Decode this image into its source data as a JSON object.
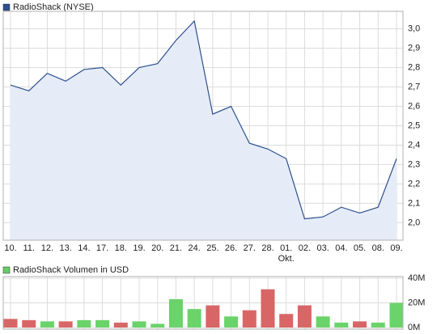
{
  "chart_data": [
    {
      "type": "area-line",
      "series": [
        {
          "name": "RadioShack (NYSE)",
          "color": "#2b4f8f",
          "fill": "#e6ecf7",
          "values": [
            2.71,
            2.68,
            2.77,
            2.73,
            2.79,
            2.8,
            2.71,
            2.8,
            2.82,
            2.94,
            3.04,
            2.56,
            2.6,
            2.41,
            2.38,
            2.33,
            2.02,
            2.03,
            2.08,
            2.05,
            2.08,
            2.33
          ]
        }
      ],
      "categories": [
        "10.",
        "11.",
        "12.",
        "13.",
        "14.",
        "17.",
        "18.",
        "19.",
        "20.",
        "21.",
        "24.",
        "25.",
        "26.",
        "27.",
        "28.",
        "01.",
        "02.",
        "03.",
        "04.",
        "05.",
        "08.",
        "09."
      ],
      "annotations": [
        {
          "text": "Okt.",
          "x": "01."
        }
      ],
      "ylim": [
        1.91,
        3.09
      ],
      "yticks": [
        {
          "value": 2.0,
          "label": "2,0"
        },
        {
          "value": 2.1,
          "label": "2,1"
        },
        {
          "value": 2.2,
          "label": "2,2"
        },
        {
          "value": 2.3,
          "label": "2,3"
        },
        {
          "value": 2.4,
          "label": "2,4"
        },
        {
          "value": 2.5,
          "label": "2,5"
        },
        {
          "value": 2.6,
          "label": "2,6"
        },
        {
          "value": 2.7,
          "label": "2,7"
        },
        {
          "value": 2.8,
          "label": "2,8"
        },
        {
          "value": 2.9,
          "label": "2,9"
        },
        {
          "value": 3.0,
          "label": "3,0"
        }
      ],
      "grid": true
    },
    {
      "type": "bar",
      "series": [
        {
          "name": "RadioShack Volumen in USD",
          "color": "#66cc66",
          "values": [
            7000000,
            6000000,
            5000000,
            5000000,
            6000000,
            6000000,
            4000000,
            5000000,
            3000000,
            23000000,
            15000000,
            18000000,
            9000000,
            14000000,
            31000000,
            11000000,
            18000000,
            9000000,
            4000000,
            5000000,
            4000000,
            20000000
          ],
          "colors": [
            "#d96666",
            "#d96666",
            "#6ad36a",
            "#d96666",
            "#6ad36a",
            "#6ad36a",
            "#d96666",
            "#6ad36a",
            "#6ad36a",
            "#6ad36a",
            "#6ad36a",
            "#d96666",
            "#6ad36a",
            "#d96666",
            "#d96666",
            "#d96666",
            "#d96666",
            "#6ad36a",
            "#6ad36a",
            "#d96666",
            "#6ad36a",
            "#6ad36a"
          ]
        }
      ],
      "ylim": [
        0,
        40000000
      ],
      "yticks": [
        {
          "value": 0,
          "label": "0M"
        },
        {
          "value": 20000000,
          "label": "20M"
        },
        {
          "value": 40000000,
          "label": "40M"
        }
      ],
      "grid": true
    }
  ]
}
